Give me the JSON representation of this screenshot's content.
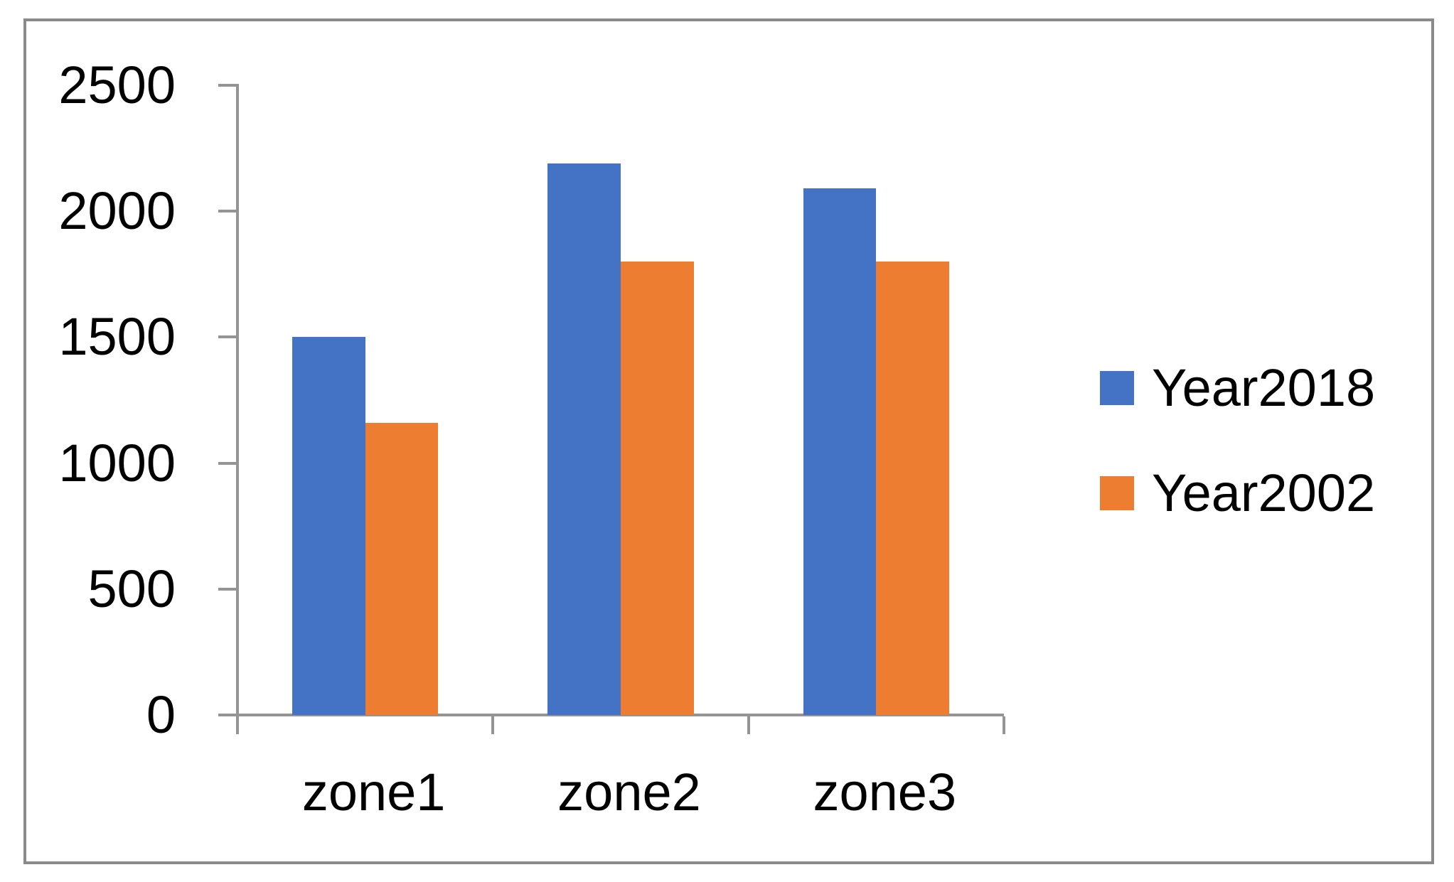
{
  "chart_data": {
    "type": "bar",
    "title": "",
    "xlabel": "",
    "ylabel": "",
    "categories": [
      "zone1",
      "zone2",
      "zone3"
    ],
    "series": [
      {
        "name": "Year2018",
        "color": "#4472C4",
        "values": [
          1500,
          2190,
          2090
        ]
      },
      {
        "name": "Year2002",
        "color": "#ED7D31",
        "values": [
          1160,
          1800,
          1800
        ]
      }
    ],
    "ylim": [
      0,
      2500
    ],
    "ytick_step": 500,
    "ytick_labels": [
      "0",
      "500",
      "1000",
      "1500",
      "2000",
      "2500"
    ],
    "grid": false,
    "legend_position": "right",
    "bar_gap_width_percent": 150
  },
  "colors": {
    "series_blue": "#4472C4",
    "series_orange": "#ED7D31",
    "axis": "#949494",
    "frame_border": "#8A8A8A",
    "text": "#000000",
    "background": "#FFFFFF"
  }
}
